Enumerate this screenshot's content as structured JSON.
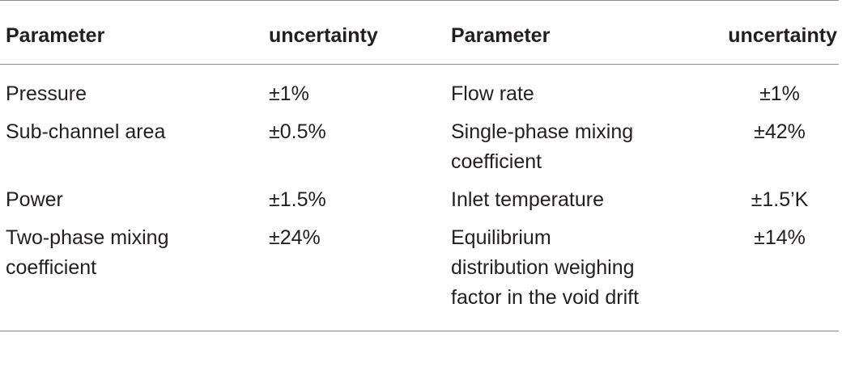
{
  "table": {
    "headers": [
      "Parameter",
      "uncertainty",
      "Parameter",
      "uncertainty"
    ],
    "rows": [
      {
        "param_a": "Pressure",
        "unc_a": "±1%",
        "param_b": "Flow rate",
        "unc_b": "±1%"
      },
      {
        "param_a": "Sub-channel area",
        "unc_a": "±0.5%",
        "param_b": "Single-phase mixing coefficient",
        "unc_b": "±42%"
      },
      {
        "param_a": "Power",
        "unc_a": "±1.5%",
        "param_b": "Inlet temperature",
        "unc_b": "±1.5’K"
      },
      {
        "param_a": "Two-phase mixing coefficient",
        "unc_a": "±24%",
        "param_b": "Equilibrium distribution weighing factor in the void drift",
        "unc_b": "±14%"
      }
    ]
  }
}
